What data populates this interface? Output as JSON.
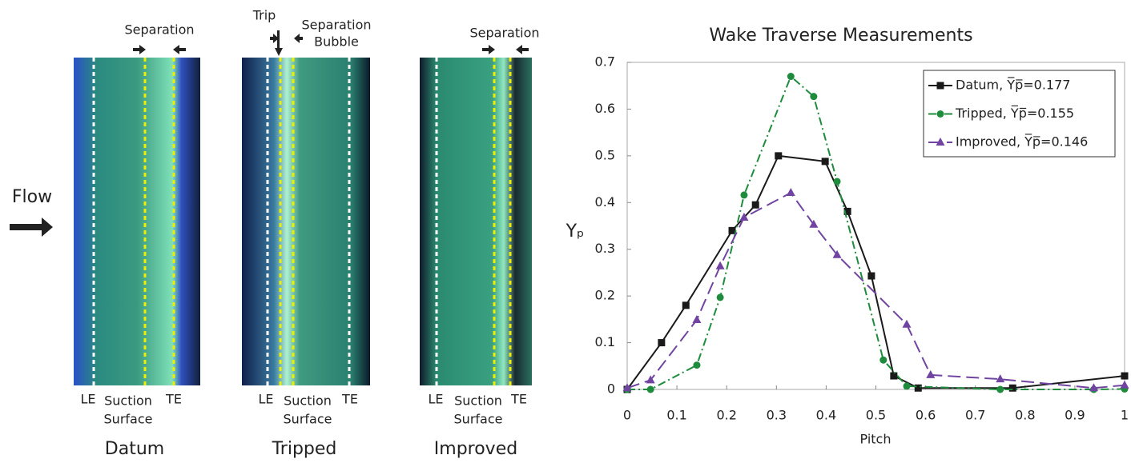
{
  "figure": {
    "flow": "Flow",
    "panels": [
      {
        "title": "Datum",
        "top": [
          {
            "lines": [
              "Separation"
            ]
          }
        ],
        "le": "LE",
        "suction": [
          "Suction",
          "Surface"
        ],
        "te": "TE"
      },
      {
        "title": "Tripped",
        "top": [
          {
            "lines": [
              "Trip"
            ]
          },
          {
            "lines": [
              "Separation",
              "Bubble"
            ]
          }
        ],
        "le": "LE",
        "suction": [
          "Suction",
          "Surface"
        ],
        "te": "TE"
      },
      {
        "title": "Improved",
        "top": [
          {
            "lines": [
              "Separation"
            ]
          }
        ],
        "le": "LE",
        "suction": [
          "Suction",
          "Surface"
        ],
        "te": "TE"
      }
    ]
  },
  "chart_data": {
    "type": "line",
    "title": "Wake Traverse Measurements",
    "x_label": "Pitch",
    "y_label": "Yₚ",
    "xlim": [
      0,
      1
    ],
    "xticks": [
      0,
      0.1,
      0.2,
      0.3,
      0.4,
      0.5,
      0.6,
      0.7,
      0.8,
      0.9,
      1
    ],
    "ylim": [
      0,
      0.7
    ],
    "yticks": [
      0,
      0.1,
      0.2,
      0.3,
      0.4,
      0.5,
      0.6,
      0.7
    ],
    "legend": "upper right",
    "series": [
      {
        "name": "Datum, Y̅p̅=0.177",
        "color": "#1a1a1a",
        "marker": "square",
        "dash": "solid",
        "x": [
          0,
          0.069,
          0.118,
          0.211,
          0.258,
          0.304,
          0.398,
          0.443,
          0.491,
          0.536,
          0.585,
          0.775,
          1
        ],
        "values": [
          0,
          0.1,
          0.18,
          0.34,
          0.395,
          0.5,
          0.488,
          0.381,
          0.243,
          0.029,
          0.003,
          0.003,
          0.029
        ]
      },
      {
        "name": "Tripped, Y̅p̅=0.155",
        "color": "#1e8c3c",
        "marker": "circle",
        "dash": "dashdot",
        "x": [
          0,
          0.047,
          0.14,
          0.187,
          0.235,
          0.329,
          0.375,
          0.422,
          0.515,
          0.562,
          0.75,
          0.938,
          1
        ],
        "values": [
          0,
          0,
          0.052,
          0.197,
          0.416,
          0.67,
          0.627,
          0.445,
          0.063,
          0.007,
          0,
          0,
          0.001
        ]
      },
      {
        "name": "Improved, Y̅p̅=0.146",
        "color": "#7044a0",
        "marker": "triangle",
        "dash": "dashed",
        "x": [
          0,
          0.047,
          0.14,
          0.187,
          0.235,
          0.329,
          0.375,
          0.422,
          0.562,
          0.61,
          0.75,
          0.938,
          1
        ],
        "values": [
          0.003,
          0.02,
          0.149,
          0.264,
          0.368,
          0.421,
          0.353,
          0.288,
          0.139,
          0.031,
          0.022,
          0.003,
          0.009
        ]
      }
    ]
  }
}
